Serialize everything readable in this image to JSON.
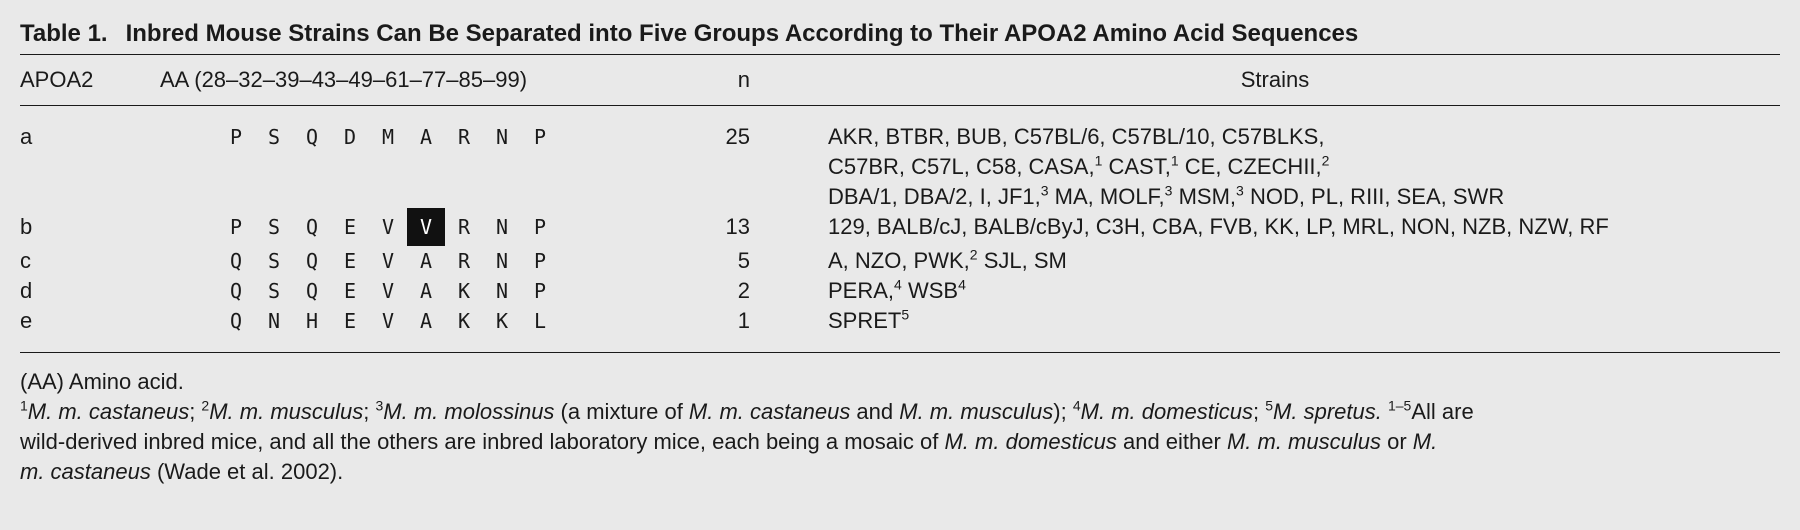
{
  "table": {
    "label": "Table 1.",
    "title": "Inbred Mouse Strains Can Be Separated into Five Groups According to Their APOA2 Amino Acid Sequences",
    "headers": {
      "apoa2": "APOA2",
      "aa": "AA (28–32–39–43–49–61–77–85–99)",
      "n": "n",
      "strains": "Strains"
    },
    "rows": [
      {
        "group": "a",
        "residues": [
          "P",
          "S",
          "Q",
          "D",
          "M",
          "A",
          "R",
          "N",
          "P"
        ],
        "highlight_index": null,
        "n": "25",
        "strain_lines": [
          [
            {
              "t": "AKR, BTBR, BUB, C57BL/6, C57BL/10, C57BLKS,"
            }
          ],
          [
            {
              "t": "C57BR, C57L, C58, CASA,"
            },
            {
              "sup": "1"
            },
            {
              "t": " CAST,"
            },
            {
              "sup": "1"
            },
            {
              "t": " CE, CZECHII,"
            },
            {
              "sup": "2"
            }
          ],
          [
            {
              "t": "DBA/1, DBA/2, I, JF1,"
            },
            {
              "sup": "3"
            },
            {
              "t": " MA, MOLF,"
            },
            {
              "sup": "3"
            },
            {
              "t": " MSM,"
            },
            {
              "sup": "3"
            },
            {
              "t": " NOD, PL, RIII, SEA, SWR"
            }
          ]
        ]
      },
      {
        "group": "b",
        "residues": [
          "P",
          "S",
          "Q",
          "E",
          "V",
          "V",
          "R",
          "N",
          "P"
        ],
        "highlight_index": 5,
        "n": "13",
        "strain_lines": [
          [
            {
              "t": "129, BALB/cJ, BALB/cByJ, C3H, CBA, FVB, KK, LP, MRL, NON, NZB, NZW, RF"
            }
          ]
        ]
      },
      {
        "group": "c",
        "residues": [
          "Q",
          "S",
          "Q",
          "E",
          "V",
          "A",
          "R",
          "N",
          "P"
        ],
        "highlight_index": null,
        "n": "5",
        "strain_lines": [
          [
            {
              "t": "A, NZO, PWK,"
            },
            {
              "sup": "2"
            },
            {
              "t": " SJL, SM"
            }
          ]
        ]
      },
      {
        "group": "d",
        "residues": [
          "Q",
          "S",
          "Q",
          "E",
          "V",
          "A",
          "K",
          "N",
          "P"
        ],
        "highlight_index": null,
        "n": "2",
        "strain_lines": [
          [
            {
              "t": "PERA,"
            },
            {
              "sup": "4"
            },
            {
              "t": " WSB"
            },
            {
              "sup": "4"
            }
          ]
        ]
      },
      {
        "group": "e",
        "residues": [
          "Q",
          "N",
          "H",
          "E",
          "V",
          "A",
          "K",
          "K",
          "L"
        ],
        "highlight_index": null,
        "n": "1",
        "strain_lines": [
          [
            {
              "t": "SPRET"
            },
            {
              "sup": "5"
            }
          ]
        ]
      }
    ],
    "notes": [
      [
        {
          "t": "(AA) Amino acid."
        }
      ],
      [
        {
          "sup": "1"
        },
        {
          "i": "M. m. castaneus"
        },
        {
          "t": "; "
        },
        {
          "sup": "2"
        },
        {
          "i": "M. m. musculus"
        },
        {
          "t": "; "
        },
        {
          "sup": "3"
        },
        {
          "i": "M. m. molossinus"
        },
        {
          "t": " (a mixture of "
        },
        {
          "i": "M. m. castaneus"
        },
        {
          "t": " and "
        },
        {
          "i": "M. m. musculus"
        },
        {
          "t": "); "
        },
        {
          "sup": "4"
        },
        {
          "i": "M. m. domesticus"
        },
        {
          "t": "; "
        },
        {
          "sup": "5"
        },
        {
          "i": "M. spretus."
        },
        {
          "t": " "
        },
        {
          "sup": "1–5"
        },
        {
          "t": "All are"
        }
      ],
      [
        {
          "t": "wild-derived inbred mice, and all the others are inbred laboratory mice, each being a mosaic of "
        },
        {
          "i": "M. m. domesticus"
        },
        {
          "t": " and either "
        },
        {
          "i": "M. m. musculus"
        },
        {
          "t": " or "
        },
        {
          "i": "M."
        }
      ],
      [
        {
          "i": "m. castaneus"
        },
        {
          "t": " (Wade et al. 2002)."
        }
      ]
    ]
  }
}
